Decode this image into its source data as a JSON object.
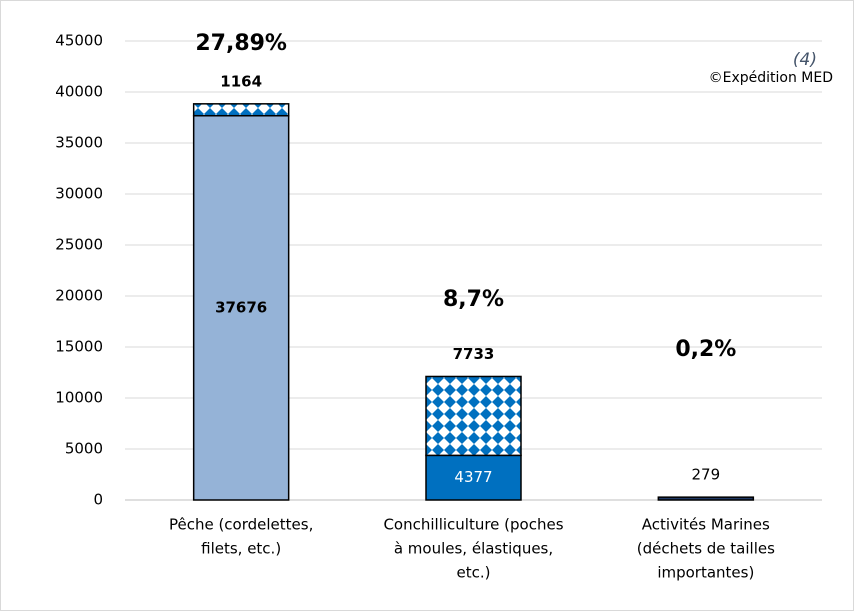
{
  "chart_data": {
    "type": "stacked_bar",
    "categories": [
      [
        "Pêche (cordelettes,",
        "filets, etc.)"
      ],
      [
        "Conchilliculture (poches",
        "à moules, élastiques,",
        "etc.)"
      ],
      [
        "Activités Marines",
        "(déchets de tailles",
        "importantes)"
      ]
    ],
    "series": [
      {
        "colors": [
          "#95b3d7",
          "#0070c0",
          "#1f3864"
        ],
        "values": [
          37676,
          4377,
          279
        ]
      },
      {
        "color": "#0070c0",
        "pattern": "diamonds",
        "values": [
          1164,
          7733,
          null
        ]
      }
    ],
    "annotations": [
      "27,89%",
      "8,7%",
      "0,2%"
    ],
    "note": "(4)",
    "credit": "©Expédition MED",
    "ylim": [
      0,
      45000
    ],
    "yticks": [
      0,
      5000,
      10000,
      15000,
      20000,
      25000,
      30000,
      35000,
      40000,
      45000
    ],
    "grid": true
  }
}
